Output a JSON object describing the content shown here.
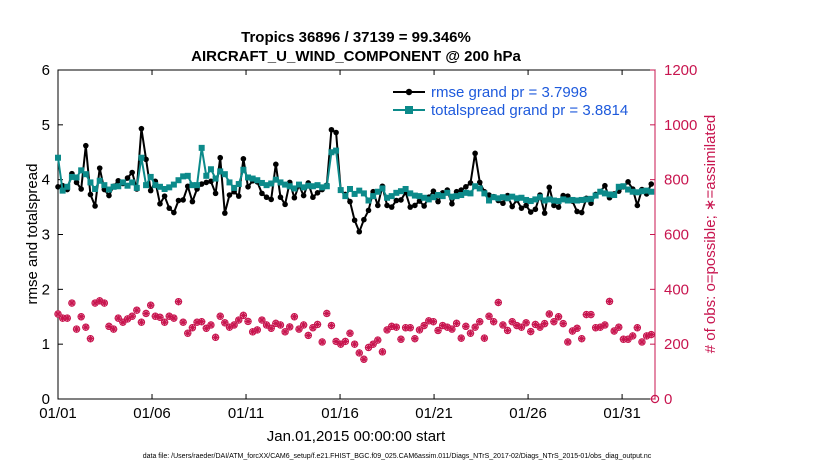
{
  "chart_data": {
    "type": "line",
    "title": [
      "Tropics 36896 / 37139 = 99.346%",
      "AIRCRAFT_U_WIND_COMPONENT @ 200 hPa"
    ],
    "xlabel": "Jan.01,2015 00:00:00 start",
    "ylabel_left": "rmse and totalspread",
    "ylabel_right": "# of obs: o=possible; ∗=assimilated",
    "footnote": "data file: /Users/raeder/DAI/ATM_forcXX/CAM6_setup/f.e21.FHIST_BGC.f09_025.CAM6assim.011/Diags_NTrS_2017-02/Diags_NTrS_2015-01/obs_diag_output.nc",
    "xlim": [
      0,
      31.75
    ],
    "ylim_left": [
      0,
      6
    ],
    "ylim_right": [
      0,
      1200
    ],
    "x_ticks": [
      0,
      5,
      10,
      15,
      20,
      25,
      30
    ],
    "x_tick_labels": [
      "01/01",
      "01/06",
      "01/11",
      "01/16",
      "01/21",
      "01/26",
      "01/31"
    ],
    "y_left_ticks": [
      0,
      1,
      2,
      3,
      4,
      5,
      6
    ],
    "y_right_ticks": [
      0,
      200,
      400,
      600,
      800,
      1000,
      1200
    ],
    "colors": {
      "rmse": "#000000",
      "spread": "#0c8a8a",
      "obs": "#c8154f",
      "right_axis": "#c8154f",
      "legend_text": "#1e5adc"
    },
    "legend": [
      {
        "name": "rmse grand pr = 3.7998",
        "series": "rmse"
      },
      {
        "name": "totalspread grand pr = 3.8814",
        "series": "spread"
      }
    ],
    "rmse": [
      3.87,
      3.89,
      3.82,
      4.11,
      3.95,
      3.83,
      4.62,
      3.73,
      3.52,
      4.21,
      3.82,
      3.71,
      3.88,
      3.98,
      3.93,
      4.03,
      4.13,
      3.83,
      4.93,
      4.37,
      3.8,
      3.97,
      3.56,
      3.7,
      3.48,
      3.4,
      3.62,
      3.63,
      3.88,
      3.6,
      3.83,
      3.92,
      3.95,
      3.97,
      3.75,
      4.4,
      3.39,
      3.72,
      3.78,
      3.7,
      4.38,
      3.87,
      3.98,
      3.96,
      3.75,
      3.68,
      3.64,
      4.28,
      3.68,
      3.55,
      3.95,
      3.67,
      3.9,
      3.71,
      3.94,
      3.68,
      3.76,
      3.82,
      3.9,
      4.91,
      4.86,
      3.81,
      3.73,
      3.6,
      3.26,
      3.05,
      3.27,
      3.44,
      3.78,
      3.53,
      3.88,
      3.53,
      3.5,
      3.62,
      3.63,
      3.77,
      3.5,
      3.53,
      3.61,
      3.52,
      3.68,
      3.79,
      3.6,
      3.76,
      3.81,
      3.56,
      3.78,
      3.81,
      3.87,
      3.94,
      4.48,
      3.95,
      3.78,
      3.72,
      3.69,
      3.62,
      3.57,
      3.71,
      3.51,
      3.63,
      3.48,
      3.53,
      3.41,
      3.46,
      3.72,
      3.39,
      3.86,
      3.53,
      3.5,
      3.71,
      3.7,
      3.61,
      3.42,
      3.4,
      3.66,
      3.57,
      3.73,
      3.78,
      3.89,
      3.67,
      3.74,
      3.79,
      3.87,
      3.96,
      3.83,
      3.53,
      3.82,
      3.74,
      3.92
    ],
    "spread": [
      4.4,
      3.8,
      3.87,
      4.05,
      4.04,
      4.17,
      4.1,
      3.95,
      3.83,
      3.98,
      3.9,
      3.82,
      3.87,
      3.88,
      3.95,
      3.89,
      3.95,
      3.85,
      4.4,
      3.9,
      4.05,
      3.9,
      3.87,
      3.83,
      3.86,
      3.91,
      3.99,
      4.06,
      4.07,
      3.9,
      3.9,
      4.58,
      4.07,
      4.19,
      4.02,
      4.15,
      4.1,
      3.95,
      3.85,
      3.92,
      4.18,
      4.04,
      4.02,
      3.99,
      3.94,
      3.9,
      3.93,
      4.0,
      3.95,
      3.91,
      3.88,
      3.84,
      3.91,
      3.86,
      3.89,
      3.88,
      3.9,
      3.86,
      3.88,
      4.5,
      4.53,
      3.81,
      3.7,
      3.83,
      3.74,
      3.8,
      3.75,
      3.62,
      3.7,
      3.78,
      3.84,
      3.67,
      3.7,
      3.76,
      3.79,
      3.83,
      3.75,
      3.71,
      3.7,
      3.67,
      3.64,
      3.68,
      3.72,
      3.7,
      3.76,
      3.69,
      3.7,
      3.72,
      3.76,
      3.75,
      3.88,
      3.84,
      3.75,
      3.62,
      3.68,
      3.66,
      3.68,
      3.66,
      3.69,
      3.66,
      3.67,
      3.63,
      3.61,
      3.64,
      3.68,
      3.62,
      3.64,
      3.62,
      3.61,
      3.64,
      3.62,
      3.63,
      3.62,
      3.63,
      3.64,
      3.65,
      3.71,
      3.78,
      3.75,
      3.73,
      3.72,
      3.87,
      3.88,
      3.82,
      3.78,
      3.77,
      3.79,
      3.8,
      3.78
    ],
    "obs_count": [
      310,
      295,
      295,
      350,
      255,
      300,
      262,
      220,
      350,
      358,
      350,
      265,
      255,
      295,
      280,
      292,
      302,
      324,
      280,
      312,
      342,
      302,
      298,
      280,
      302,
      295,
      355,
      280,
      240,
      260,
      280,
      282,
      258,
      270,
      225,
      302,
      278,
      262,
      270,
      288,
      305,
      283,
      245,
      252,
      288,
      270,
      258,
      276,
      270,
      245,
      263,
      300,
      255,
      270,
      232,
      260,
      272,
      208,
      312,
      268,
      210,
      200,
      210,
      240,
      200,
      168,
      145,
      188,
      200,
      215,
      172,
      252,
      265,
      262,
      218,
      260,
      260,
      220,
      252,
      268,
      285,
      282,
      250,
      268,
      262,
      255,
      276,
      222,
      265,
      240,
      262,
      282,
      222,
      302,
      282,
      352,
      270,
      250,
      282,
      268,
      262,
      278,
      246,
      272,
      262,
      275,
      310,
      282,
      300,
      275,
      208,
      248,
      258,
      220,
      308,
      308,
      260,
      262,
      270,
      356,
      248,
      262,
      218,
      218,
      230,
      260,
      208,
      230,
      235
    ],
    "obs_x_positions": "evenly spaced, 4 per day",
    "extra_obs_end_value": 0
  }
}
